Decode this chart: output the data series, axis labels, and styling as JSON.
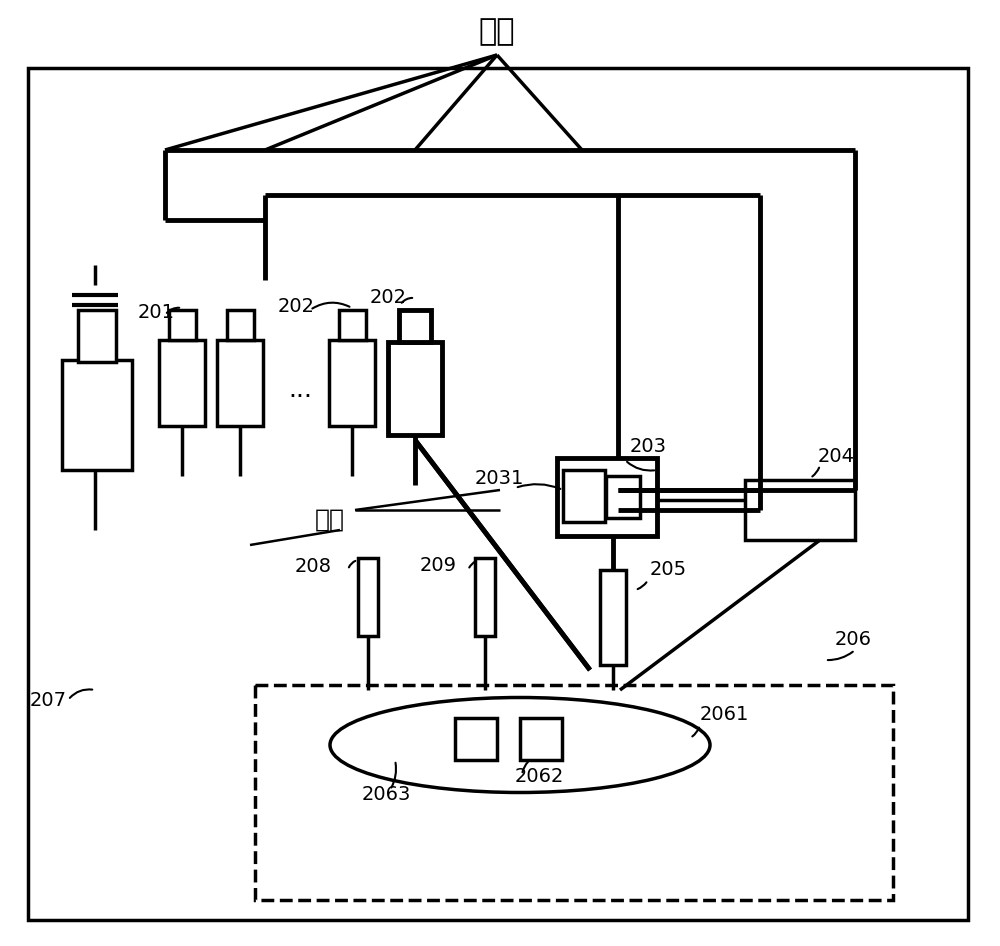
{
  "bg_color": "#ffffff",
  "line_color": "#000000",
  "lw_thin": 1.8,
  "lw_med": 2.5,
  "lw_thick": 3.5,
  "figsize": [
    10.0,
    9.46
  ],
  "dpi": 100
}
